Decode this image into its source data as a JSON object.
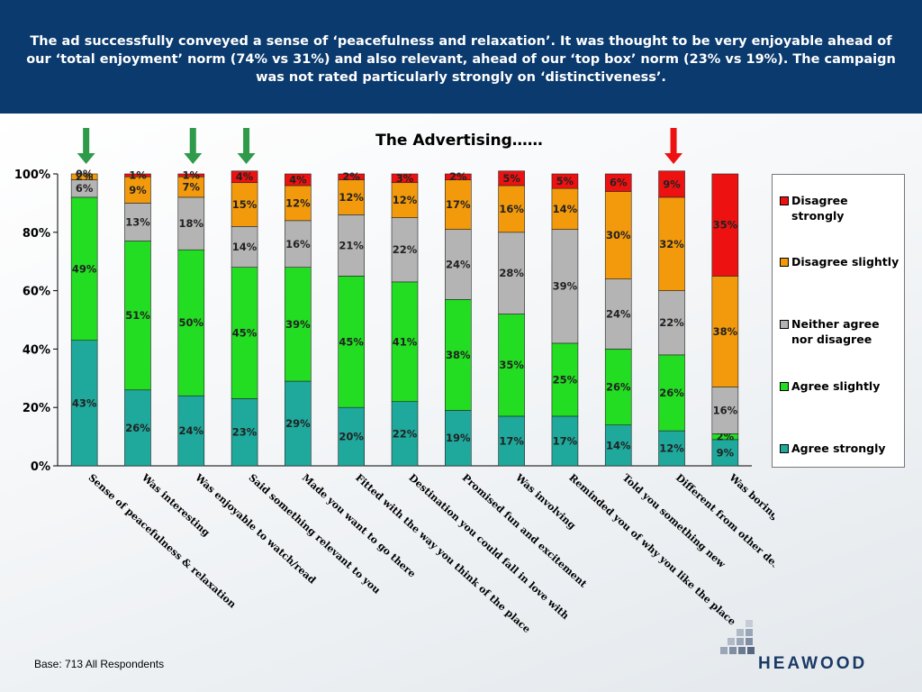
{
  "header": {
    "text": "The ad successfully conveyed a sense of ‘peacefulness and relaxation’. It was thought to be very enjoyable ahead of our ‘total enjoyment’ norm (74% vs 31%) and also relevant, ahead of our ‘top box’ norm (23% vs 19%). The campaign was not rated particularly strongly on ‘distinctiveness’."
  },
  "footer": {
    "base": "Base: 713 All Respondents",
    "logo_text": "HEAWOOD"
  },
  "colors": {
    "agree_strongly": "#1fa89c",
    "agree_slightly": "#22dd22",
    "neither": "#b4b4b4",
    "disagree_slightly": "#f39a0c",
    "disagree_strongly": "#ee1111",
    "header_bg": "#0a3a6e",
    "arrow_green": "#2e9a4a",
    "arrow_red": "#ee1111"
  },
  "chart_data": {
    "type": "bar",
    "stacked": true,
    "title": "The Advertising……",
    "ylim": [
      0,
      100
    ],
    "yticks": [
      "0%",
      "20%",
      "40%",
      "60%",
      "80%",
      "100%"
    ],
    "legend_position": "right",
    "categories": [
      "Sense of peacefulness & relaxation",
      "Was interesting",
      "Was enjoyable to watch/read",
      "Said something relevant to you",
      "Made you want to go there",
      "Fitted with the way you think of the place",
      "Destination you could fall in love with",
      "Promised fun and excitement",
      "Was involving",
      "Reminded you of why you like the place",
      "Told you something new",
      "Different from other destination ads",
      "Was boring"
    ],
    "series": [
      {
        "name": "Agree strongly",
        "color_key": "agree_strongly",
        "values": [
          43,
          26,
          24,
          23,
          29,
          20,
          22,
          19,
          17,
          17,
          14,
          12,
          9
        ],
        "labels": [
          "43%",
          "26%",
          "24%",
          "23%",
          "29%",
          "20%",
          "22%",
          "19%",
          "17%",
          "17%",
          "14%",
          "12%",
          "9%"
        ]
      },
      {
        "name": "Agree slightly",
        "color_key": "agree_slightly",
        "values": [
          49,
          51,
          50,
          45,
          39,
          45,
          41,
          38,
          35,
          25,
          26,
          26,
          2
        ],
        "labels": [
          "49%",
          "51%",
          "50%",
          "45%",
          "39%",
          "45%",
          "41%",
          "38%",
          "35%",
          "25%",
          "26%",
          "26%",
          "2%"
        ]
      },
      {
        "name": "Neither agree nor disagree",
        "color_key": "neither",
        "values": [
          6,
          13,
          18,
          14,
          16,
          21,
          22,
          24,
          28,
          39,
          24,
          22,
          16
        ],
        "labels": [
          "6%",
          "13%",
          "18%",
          "14%",
          "16%",
          "21%",
          "22%",
          "24%",
          "28%",
          "39%",
          "24%",
          "22%",
          "16%"
        ]
      },
      {
        "name": "Disagree slightly",
        "color_key": "disagree_slightly",
        "values": [
          2,
          9,
          7,
          15,
          12,
          12,
          12,
          17,
          16,
          14,
          30,
          32,
          38
        ],
        "labels": [
          "2%",
          "9%",
          "7%",
          "15%",
          "12%",
          "12%",
          "12%",
          "17%",
          "16%",
          "14%",
          "30%",
          "32%",
          "38%"
        ]
      },
      {
        "name": "Disagree strongly",
        "color_key": "disagree_strongly",
        "values": [
          0,
          1,
          1,
          4,
          4,
          2,
          3,
          2,
          5,
          5,
          6,
          9,
          35
        ],
        "labels": [
          "0%",
          "1%",
          "1%",
          "4%",
          "4%",
          "2%",
          "3%",
          "2%",
          "5%",
          "5%",
          "6%",
          "9%",
          "35%"
        ]
      }
    ],
    "legend": [
      {
        "line1": "Disagree",
        "line2": "strongly",
        "color_key": "disagree_strongly"
      },
      {
        "line1": "Disagree slightly",
        "line2": "",
        "color_key": "disagree_slightly"
      },
      {
        "line1": "Neither agree",
        "line2": "nor disagree",
        "color_key": "neither"
      },
      {
        "line1": "Agree slightly",
        "line2": "",
        "color_key": "agree_slightly"
      },
      {
        "line1": "Agree strongly",
        "line2": "",
        "color_key": "agree_strongly"
      }
    ],
    "arrows": [
      {
        "category_index": 0,
        "direction": "down",
        "color_key": "arrow_green"
      },
      {
        "category_index": 2,
        "direction": "down",
        "color_key": "arrow_green"
      },
      {
        "category_index": 3,
        "direction": "down",
        "color_key": "arrow_green"
      },
      {
        "category_index": 11,
        "direction": "down",
        "color_key": "arrow_red"
      }
    ]
  }
}
